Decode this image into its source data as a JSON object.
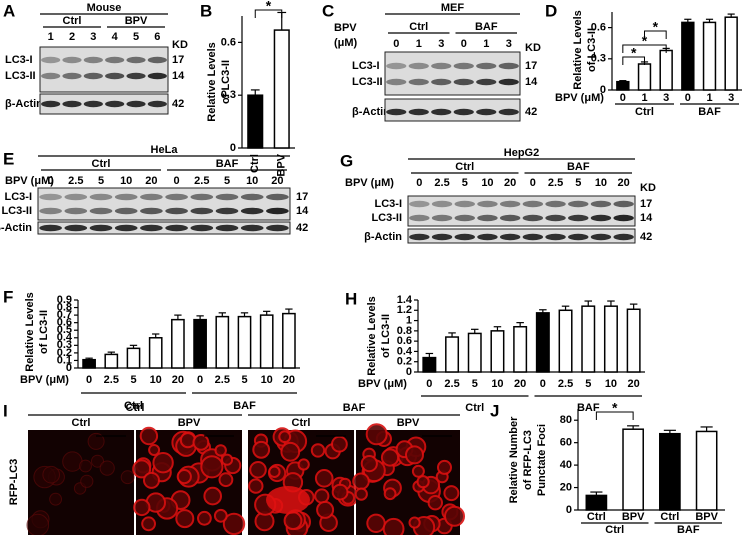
{
  "panel_labels": [
    "A",
    "B",
    "C",
    "D",
    "E",
    "F",
    "G",
    "H",
    "I",
    "J"
  ],
  "blots": [
    {
      "title": "Mouse",
      "groups": [
        "Ctrl",
        "BPV"
      ],
      "lanes": [
        1,
        2,
        3,
        4,
        5,
        6
      ],
      "kd": "KD",
      "rows": [
        {
          "label": "LC3-I",
          "kd": 17
        },
        {
          "label": "LC3-II",
          "kd": 14
        },
        {
          "label": "β-Actin",
          "kd": 42
        }
      ]
    },
    {
      "title": "MEF",
      "conditions": [
        "BPV",
        "(μM)"
      ],
      "groups": [
        "Ctrl",
        "BAF"
      ],
      "lanes": [
        0,
        1,
        3,
        0,
        1,
        3
      ],
      "kd": "KD",
      "rows": [
        {
          "label": "LC3-I",
          "kd": 17
        },
        {
          "label": "LC3-II",
          "kd": 14
        },
        {
          "label": "β-Actin",
          "kd": 42
        }
      ]
    },
    {
      "title": "HeLa",
      "conditions": [
        "BPV (μM)"
      ],
      "groups": [
        "Ctrl",
        "BAF"
      ],
      "lanes": [
        0,
        2.5,
        5,
        10,
        20,
        0,
        2.5,
        5,
        10,
        20
      ],
      "rows": [
        {
          "label": "LC3-I",
          "kd": 17
        },
        {
          "label": "LC3-II",
          "kd": 14
        },
        {
          "label": "β-Actin",
          "kd": 42
        }
      ]
    },
    {
      "title": "HepG2",
      "conditions": [
        "BPV (μM)"
      ],
      "groups": [
        "Ctrl",
        "BAF"
      ],
      "lanes": [
        0,
        2.5,
        5,
        10,
        20,
        0,
        2.5,
        5,
        10,
        20
      ],
      "kd": "KD",
      "rows": [
        {
          "label": "LC3-I",
          "kd": 17
        },
        {
          "label": "LC3-II",
          "kd": 14
        },
        {
          "label": "β-Actin",
          "kd": 42
        }
      ]
    }
  ],
  "images": {
    "stain": "RFP-LC3",
    "groups": [
      {
        "label": "Ctrl",
        "columns": [
          "Ctrl",
          "BPV"
        ]
      },
      {
        "label": "BAF",
        "columns": [
          "Ctrl",
          "BPV"
        ]
      }
    ]
  },
  "chart_data": [
    {
      "type": "bar",
      "ylabel": [
        "Relative Levels",
        "of LC3-II"
      ],
      "categories": [
        "Ctrl",
        "BPV"
      ],
      "values": [
        0.3,
        0.67
      ],
      "errors": [
        0.03,
        0.1
      ],
      "colors": [
        "#000000",
        "#ffffff"
      ],
      "ylim": [
        0,
        0.75
      ],
      "yticks": [
        0,
        0.3,
        0.6
      ],
      "annotations": [
        "*"
      ]
    },
    {
      "type": "bar",
      "ylabel": [
        "Relative Levels",
        "of LC3-II"
      ],
      "xlabel": "BPV (μM)",
      "categories": [
        0,
        1,
        3,
        0,
        1,
        3
      ],
      "groups": [
        "Ctrl",
        "BAF"
      ],
      "values": [
        0.08,
        0.25,
        0.38,
        0.65,
        0.65,
        0.7
      ],
      "errors": [
        0.01,
        0.02,
        0.02,
        0.03,
        0.03,
        0.03
      ],
      "colors": [
        "#000000",
        "#ffffff",
        "#ffffff",
        "#000000",
        "#ffffff",
        "#ffffff"
      ],
      "ylim": [
        0,
        0.75
      ],
      "yticks": [
        0,
        0.3,
        0.6
      ],
      "annotations": [
        "*",
        "*",
        "*"
      ]
    },
    {
      "type": "bar",
      "ylabel": [
        "Relative Levels",
        "of LC3-II"
      ],
      "xlabel": "BPV (μM)",
      "categories": [
        0,
        2.5,
        5,
        10,
        20,
        0,
        2.5,
        5,
        10,
        20
      ],
      "groups": [
        "Ctrl",
        "BAF"
      ],
      "values": [
        0.11,
        0.18,
        0.26,
        0.4,
        0.64,
        0.64,
        0.68,
        0.68,
        0.7,
        0.72
      ],
      "errors": [
        0.02,
        0.03,
        0.04,
        0.05,
        0.06,
        0.05,
        0.05,
        0.05,
        0.05,
        0.06
      ],
      "colors": [
        "#000000",
        "#ffffff",
        "#ffffff",
        "#ffffff",
        "#ffffff",
        "#000000",
        "#ffffff",
        "#ffffff",
        "#ffffff",
        "#ffffff"
      ],
      "ylim": [
        0,
        0.9
      ],
      "yticks": [
        0,
        0.1,
        0.2,
        0.3,
        0.4,
        0.5,
        0.6,
        0.7,
        0.8,
        0.9
      ]
    },
    {
      "type": "bar",
      "ylabel": [
        "Relative Levels",
        "of LC3-II"
      ],
      "xlabel": "BPV (μM)",
      "categories": [
        0,
        2.5,
        5,
        10,
        20,
        0,
        2.5,
        5,
        10,
        20
      ],
      "groups": [
        "Ctrl",
        "BAF"
      ],
      "values": [
        0.28,
        0.68,
        0.75,
        0.8,
        0.88,
        1.15,
        1.2,
        1.28,
        1.28,
        1.22
      ],
      "errors": [
        0.08,
        0.08,
        0.08,
        0.08,
        0.08,
        0.06,
        0.08,
        0.1,
        0.1,
        0.1
      ],
      "colors": [
        "#000000",
        "#ffffff",
        "#ffffff",
        "#ffffff",
        "#ffffff",
        "#000000",
        "#ffffff",
        "#ffffff",
        "#ffffff",
        "#ffffff"
      ],
      "ylim": [
        0,
        1.4
      ],
      "yticks": [
        0,
        0.2,
        0.4,
        0.6,
        0.8,
        1,
        1.2,
        1.4
      ]
    },
    {
      "type": "bar",
      "ylabel": [
        "Relative Number",
        "of RFP-LC3",
        "Punctate Foci"
      ],
      "categories": [
        "Ctrl",
        "BPV",
        "Ctrl",
        "BPV"
      ],
      "groups": [
        "Ctrl",
        "BAF"
      ],
      "values": [
        13,
        72,
        68,
        70
      ],
      "errors": [
        3,
        3,
        3,
        4
      ],
      "colors": [
        "#000000",
        "#ffffff",
        "#000000",
        "#ffffff"
      ],
      "ylim": [
        0,
        90
      ],
      "yticks": [
        0,
        20,
        40,
        60,
        80
      ],
      "annotations": [
        "*"
      ]
    }
  ]
}
